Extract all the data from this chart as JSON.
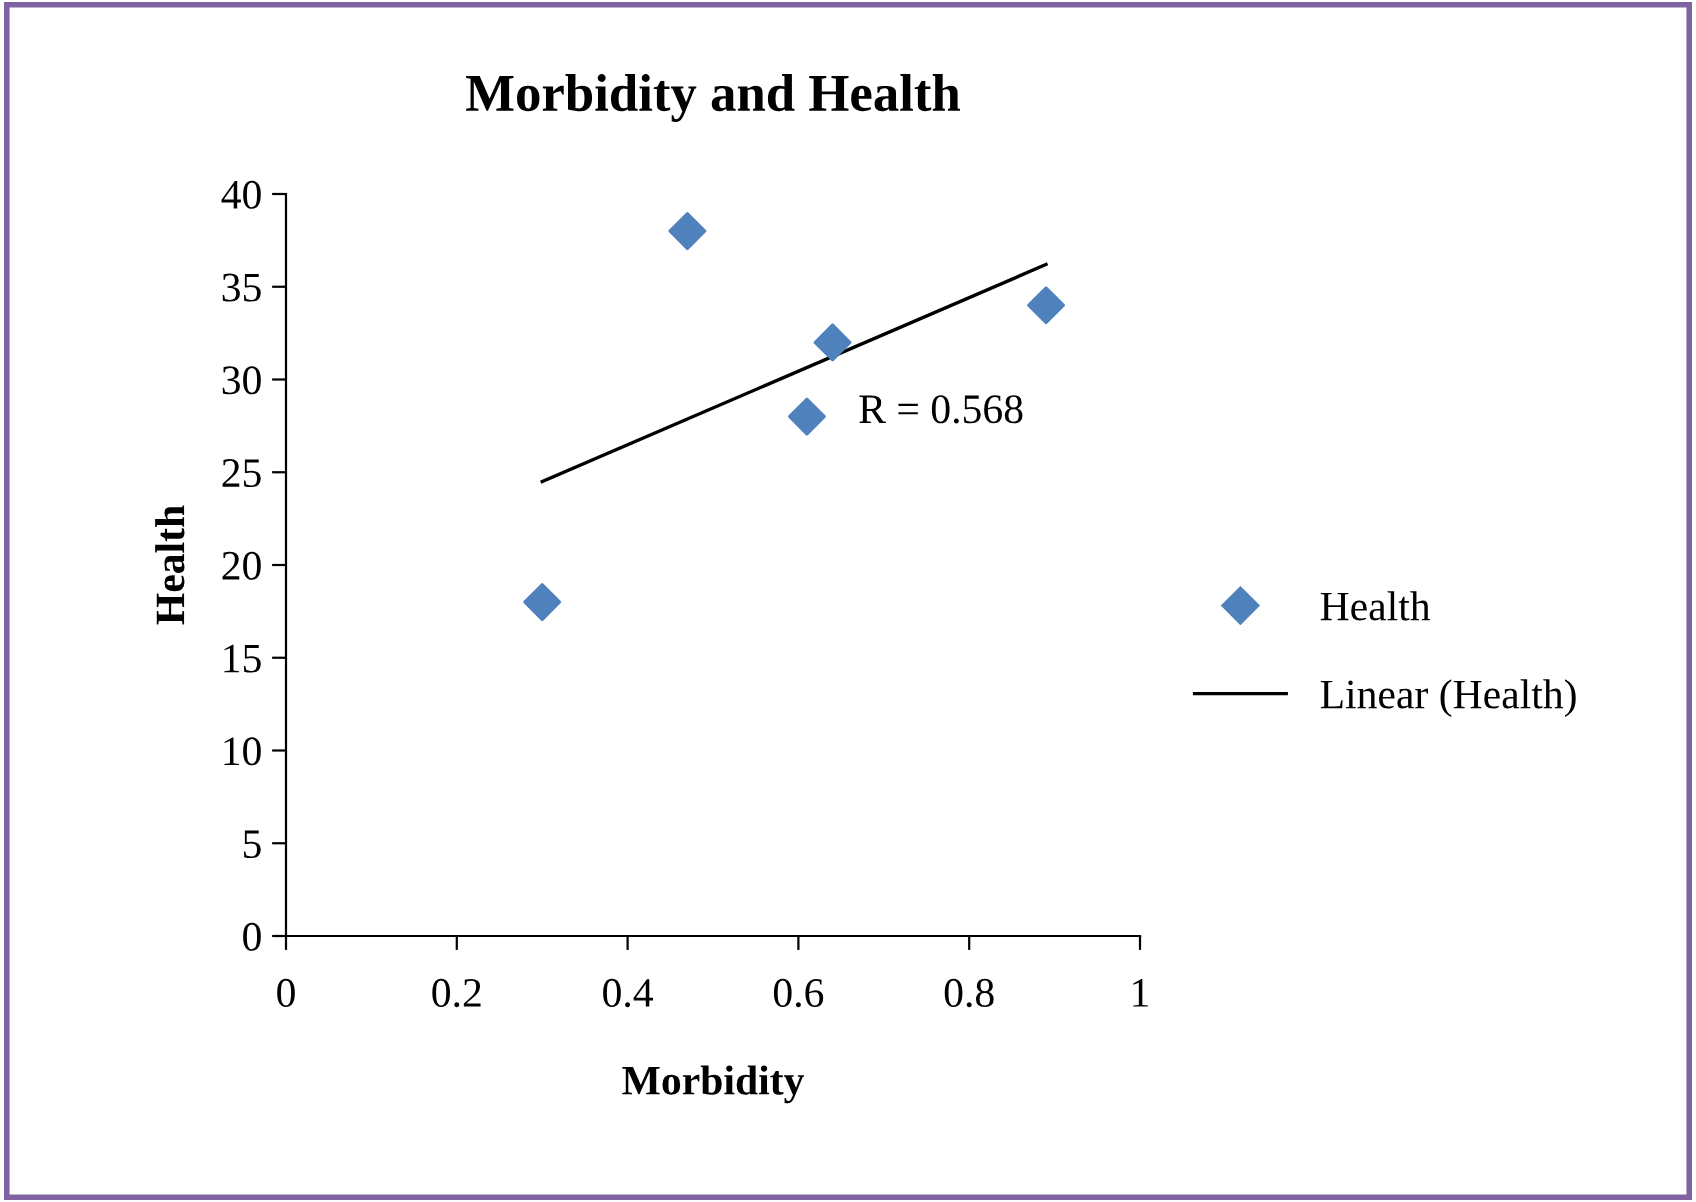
{
  "chart_data": {
    "type": "scatter",
    "title": "Morbidity and Health",
    "xlabel": "Morbidity",
    "ylabel": "Health",
    "series": [
      {
        "name": "Health",
        "color": "#4f81bd",
        "marker": "diamond",
        "x": [
          0.3,
          0.47,
          0.61,
          0.64,
          0.89
        ],
        "values": [
          18,
          38,
          28,
          32,
          34
        ]
      },
      {
        "name": "Linear (Health)",
        "type": "line",
        "color": "#000000",
        "marker": "none",
        "line_style": "solid",
        "x": [
          0.3,
          0.89
        ],
        "values": [
          24.5,
          36.2
        ]
      }
    ],
    "annotations": [
      "R = 0.568"
    ],
    "xlim": [
      0,
      1
    ],
    "xticks": [
      0,
      0.2,
      0.4,
      0.6,
      0.8,
      1
    ],
    "ylim": [
      0,
      40
    ],
    "yticks": [
      0,
      5,
      10,
      15,
      20,
      25,
      30,
      35,
      40
    ],
    "grid": false,
    "legend": "right"
  }
}
